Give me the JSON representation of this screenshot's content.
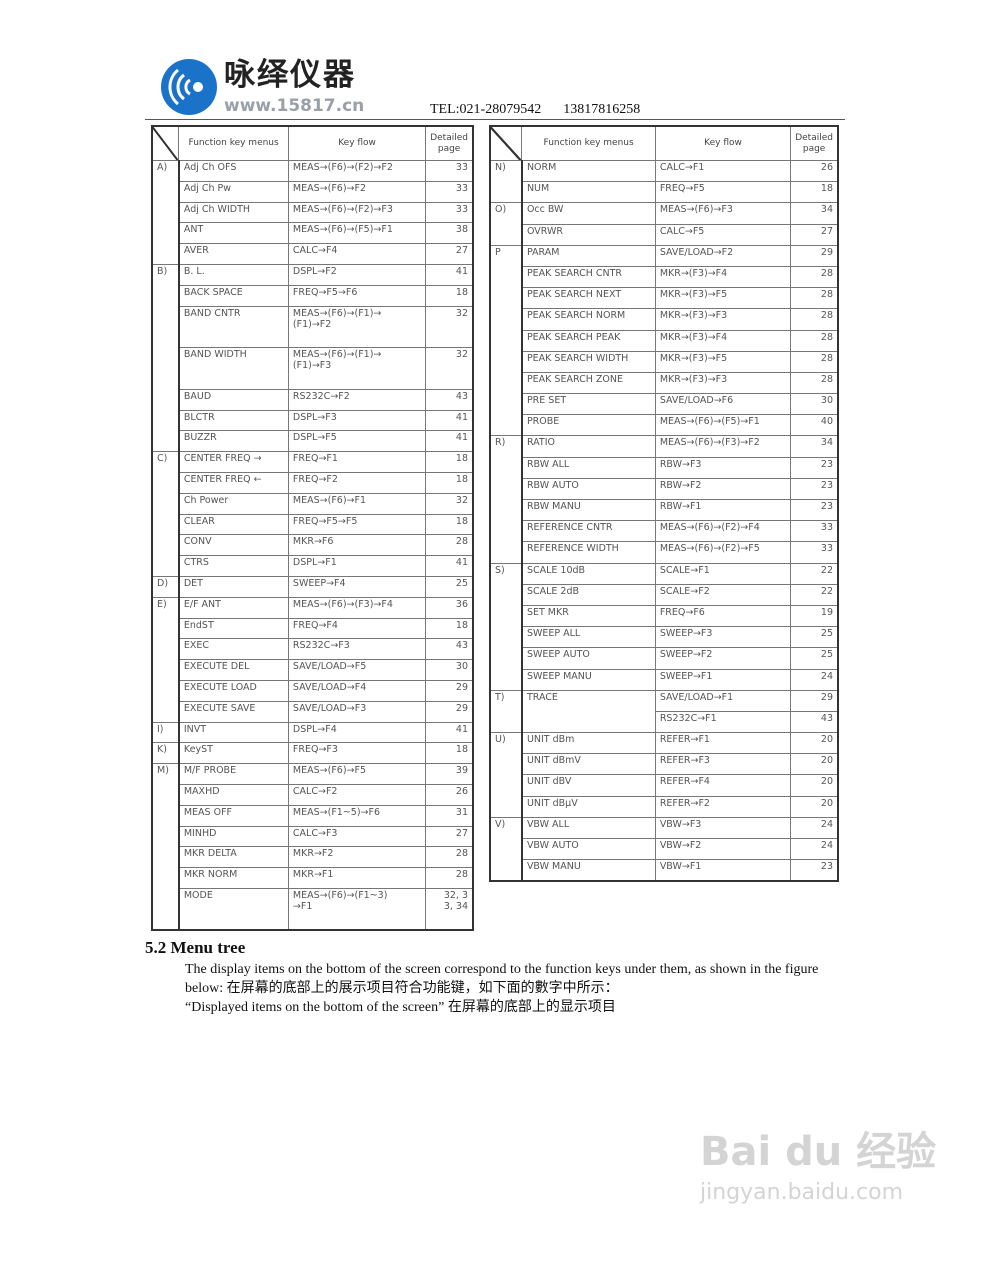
{
  "header": {
    "brand_cn": "咏绎仪器",
    "brand_url": "www.15817.cn",
    "tel": "TEL:021-28079542",
    "mobile": "13817816258",
    "logo_color": "#1a73c8"
  },
  "table_headers": {
    "menu": "Function key menus",
    "flow": "Key flow",
    "page": "Detailed\npage"
  },
  "left_table": [
    {
      "letter": "A)",
      "rows": [
        {
          "name": "Adj Ch OFS",
          "flows": [
            {
              "key": "MEAS→(F6)→(F2)→F2",
              "page": "33"
            }
          ]
        },
        {
          "name": "Adj Ch Pw",
          "flows": [
            {
              "key": "MEAS→(F6)→F2",
              "page": "33"
            }
          ]
        },
        {
          "name": "Adj Ch WIDTH",
          "flows": [
            {
              "key": "MEAS→(F6)→(F2)→F3",
              "page": "33"
            }
          ]
        },
        {
          "name": "ANT",
          "flows": [
            {
              "key": "MEAS→(F6)→(F5)→F1",
              "page": "38"
            }
          ]
        },
        {
          "name": "AVER",
          "flows": [
            {
              "key": "CALC→F4",
              "page": "27"
            }
          ]
        }
      ]
    },
    {
      "letter": "B)",
      "rows": [
        {
          "name": "B. L.",
          "flows": [
            {
              "key": "DSPL→F2",
              "page": "41"
            }
          ]
        },
        {
          "name": "BACK SPACE",
          "flows": [
            {
              "key": "FREQ→F5→F6",
              "page": "18"
            }
          ]
        },
        {
          "name": "BAND CNTR",
          "flows": [
            {
              "key": "MEAS→(F6)→(F1)→\n(F1)→F2",
              "page": "32"
            }
          ]
        },
        {
          "name": "BAND WIDTH",
          "flows": [
            {
              "key": "MEAS→(F6)→(F1)→\n(F1)→F3",
              "page": "32"
            }
          ]
        },
        {
          "name": "BAUD",
          "flows": [
            {
              "key": "RS232C→F2",
              "page": "43"
            }
          ]
        },
        {
          "name": "BLCTR",
          "flows": [
            {
              "key": "DSPL→F3",
              "page": "41"
            }
          ]
        },
        {
          "name": "BUZZR",
          "flows": [
            {
              "key": "DSPL→F5",
              "page": "41"
            }
          ]
        }
      ]
    },
    {
      "letter": "C)",
      "rows": [
        {
          "name": "CENTER FREQ →",
          "flows": [
            {
              "key": "FREQ→F1",
              "page": "18"
            }
          ]
        },
        {
          "name": "CENTER FREQ ←",
          "flows": [
            {
              "key": "FREQ→F2",
              "page": "18"
            }
          ]
        },
        {
          "name": "Ch Power",
          "flows": [
            {
              "key": "MEAS→(F6)→F1",
              "page": "32"
            }
          ]
        },
        {
          "name": "CLEAR",
          "flows": [
            {
              "key": "FREQ→F5→F5",
              "page": "18"
            }
          ]
        },
        {
          "name": "CONV",
          "flows": [
            {
              "key": "MKR→F6",
              "page": "28"
            }
          ]
        },
        {
          "name": "CTRS",
          "flows": [
            {
              "key": "DSPL→F1",
              "page": "41"
            }
          ]
        }
      ]
    },
    {
      "letter": "D)",
      "rows": [
        {
          "name": "DET",
          "flows": [
            {
              "key": "SWEEP→F4",
              "page": "25"
            }
          ]
        }
      ]
    },
    {
      "letter": "E)",
      "rows": [
        {
          "name": "E/F ANT",
          "flows": [
            {
              "key": "MEAS→(F6)→(F3)→F4",
              "page": "36"
            }
          ]
        },
        {
          "name": "EndST",
          "flows": [
            {
              "key": "FREQ→F4",
              "page": "18"
            }
          ]
        },
        {
          "name": "EXEC",
          "flows": [
            {
              "key": "RS232C→F3",
              "page": "43"
            }
          ]
        },
        {
          "name": "EXECUTE DEL",
          "flows": [
            {
              "key": "SAVE/LOAD→F5",
              "page": "30"
            }
          ]
        },
        {
          "name": "EXECUTE LOAD",
          "flows": [
            {
              "key": "SAVE/LOAD→F4",
              "page": "29"
            }
          ]
        },
        {
          "name": "EXECUTE SAVE",
          "flows": [
            {
              "key": "SAVE/LOAD→F3",
              "page": "29"
            }
          ]
        }
      ]
    },
    {
      "letter": "I)",
      "rows": [
        {
          "name": "INVT",
          "flows": [
            {
              "key": "DSPL→F4",
              "page": "41"
            }
          ]
        }
      ]
    },
    {
      "letter": "K)",
      "rows": [
        {
          "name": "KeyST",
          "flows": [
            {
              "key": "FREQ→F3",
              "page": "18"
            }
          ]
        }
      ]
    },
    {
      "letter": "M)",
      "rows": [
        {
          "name": "M/F PROBE",
          "flows": [
            {
              "key": "MEAS→(F6)→F5",
              "page": "39"
            }
          ]
        },
        {
          "name": "MAXHD",
          "flows": [
            {
              "key": "CALC→F2",
              "page": "26"
            }
          ]
        },
        {
          "name": "MEAS OFF",
          "flows": [
            {
              "key": "MEAS→(F1~5)→F6",
              "page": "31"
            }
          ]
        },
        {
          "name": "MINHD",
          "flows": [
            {
              "key": "CALC→F3",
              "page": "27"
            }
          ]
        },
        {
          "name": "MKR DELTA",
          "flows": [
            {
              "key": "MKR→F2",
              "page": "28"
            }
          ]
        },
        {
          "name": "MKR NORM",
          "flows": [
            {
              "key": "MKR→F1",
              "page": "28"
            }
          ]
        },
        {
          "name": "MODE",
          "flows": [
            {
              "key": "MEAS→(F6)→(F1~3)\n→F1",
              "page": "32, 3\n3, 34"
            }
          ]
        }
      ]
    }
  ],
  "right_table": [
    {
      "letter": "N)",
      "rows": [
        {
          "name": "NORM",
          "flows": [
            {
              "key": "CALC→F1",
              "page": "26"
            }
          ]
        },
        {
          "name": "NUM",
          "flows": [
            {
              "key": "FREQ→F5",
              "page": "18"
            }
          ]
        }
      ]
    },
    {
      "letter": "O)",
      "rows": [
        {
          "name": "Occ BW",
          "flows": [
            {
              "key": "MEAS→(F6)→F3",
              "page": "34"
            }
          ]
        },
        {
          "name": "OVRWR",
          "flows": [
            {
              "key": "CALC→F5",
              "page": "27"
            }
          ]
        }
      ]
    },
    {
      "letter": "P",
      "rows": [
        {
          "name": "PARAM",
          "flows": [
            {
              "key": "SAVE/LOAD→F2",
              "page": "29"
            }
          ]
        },
        {
          "name": "PEAK SEARCH CNTR",
          "flows": [
            {
              "key": "MKR→(F3)→F4",
              "page": "28"
            }
          ]
        },
        {
          "name": "PEAK SEARCH NEXT",
          "flows": [
            {
              "key": "MKR→(F3)→F5",
              "page": "28"
            }
          ]
        },
        {
          "name": "PEAK SEARCH NORM",
          "flows": [
            {
              "key": "MKR→(F3)→F3",
              "page": "28"
            }
          ]
        },
        {
          "name": "PEAK SEARCH PEAK",
          "flows": [
            {
              "key": "MKR→(F3)→F4",
              "page": "28"
            }
          ]
        },
        {
          "name": "PEAK SEARCH WIDTH",
          "flows": [
            {
              "key": "MKR→(F3)→F5",
              "page": "28"
            }
          ]
        },
        {
          "name": "PEAK SEARCH ZONE",
          "flows": [
            {
              "key": "MKR→(F3)→F3",
              "page": "28"
            }
          ]
        },
        {
          "name": "PRE SET",
          "flows": [
            {
              "key": "SAVE/LOAD→F6",
              "page": "30"
            }
          ]
        },
        {
          "name": "PROBE",
          "flows": [
            {
              "key": "MEAS→(F6)→(F5)→F1",
              "page": "40"
            }
          ]
        }
      ]
    },
    {
      "letter": "R)",
      "rows": [
        {
          "name": "RATIO",
          "flows": [
            {
              "key": "MEAS→(F6)→(F3)→F2",
              "page": "34"
            }
          ]
        },
        {
          "name": "RBW ALL",
          "flows": [
            {
              "key": "RBW→F3",
              "page": "23"
            }
          ]
        },
        {
          "name": "RBW AUTO",
          "flows": [
            {
              "key": "RBW→F2",
              "page": "23"
            }
          ]
        },
        {
          "name": "RBW MANU",
          "flows": [
            {
              "key": "RBW→F1",
              "page": "23"
            }
          ]
        },
        {
          "name": "REFERENCE CNTR",
          "flows": [
            {
              "key": "MEAS→(F6)→(F2)→F4",
              "page": "33"
            }
          ]
        },
        {
          "name": "REFERENCE WIDTH",
          "flows": [
            {
              "key": "MEAS→(F6)→(F2)→F5",
              "page": "33"
            }
          ]
        }
      ]
    },
    {
      "letter": "S)",
      "rows": [
        {
          "name": "SCALE 10dB",
          "flows": [
            {
              "key": "SCALE→F1",
              "page": "22"
            }
          ]
        },
        {
          "name": "SCALE 2dB",
          "flows": [
            {
              "key": "SCALE→F2",
              "page": "22"
            }
          ]
        },
        {
          "name": "SET MKR",
          "flows": [
            {
              "key": "FREQ→F6",
              "page": "19"
            }
          ]
        },
        {
          "name": "SWEEP ALL",
          "flows": [
            {
              "key": "SWEEP→F3",
              "page": "25"
            }
          ]
        },
        {
          "name": "SWEEP AUTO",
          "flows": [
            {
              "key": "SWEEP→F2",
              "page": "25"
            }
          ]
        },
        {
          "name": "SWEEP MANU",
          "flows": [
            {
              "key": "SWEEP→F1",
              "page": "24"
            }
          ]
        }
      ]
    },
    {
      "letter": "T)",
      "rows": [
        {
          "name": "TRACE",
          "flows": [
            {
              "key": "SAVE/LOAD→F1",
              "page": "29"
            },
            {
              "key": "RS232C→F1",
              "page": "43"
            }
          ]
        }
      ]
    },
    {
      "letter": "U)",
      "rows": [
        {
          "name": "UNIT dBm",
          "flows": [
            {
              "key": "REFER→F1",
              "page": "20"
            }
          ]
        },
        {
          "name": "UNIT dBmV",
          "flows": [
            {
              "key": "REFER→F3",
              "page": "20"
            }
          ]
        },
        {
          "name": "UNIT dBV",
          "flows": [
            {
              "key": "REFER→F4",
              "page": "20"
            }
          ]
        },
        {
          "name": "UNIT dBμV",
          "flows": [
            {
              "key": "REFER→F2",
              "page": "20"
            }
          ]
        }
      ]
    },
    {
      "letter": "V)",
      "rows": [
        {
          "name": "VBW ALL",
          "flows": [
            {
              "key": "VBW→F3",
              "page": "24"
            }
          ]
        },
        {
          "name": "VBW AUTO",
          "flows": [
            {
              "key": "VBW→F2",
              "page": "24"
            }
          ]
        },
        {
          "name": "VBW MANU",
          "flows": [
            {
              "key": "VBW→F1",
              "page": "23"
            }
          ]
        }
      ]
    }
  ],
  "section": {
    "title": "5.2 Menu tree",
    "line1": "The display items on the bottom of the screen correspond to the function keys under them, as shown in the figure below:  在屏幕的底部上的展示项目符合功能键，如下面的數字中所示：",
    "line2": "“Displayed items on the bottom of the screen”  在屏幕的底部上的显示项目"
  },
  "watermark": {
    "logo": "Bai du 经验",
    "url": "jingyan.baidu.com"
  }
}
